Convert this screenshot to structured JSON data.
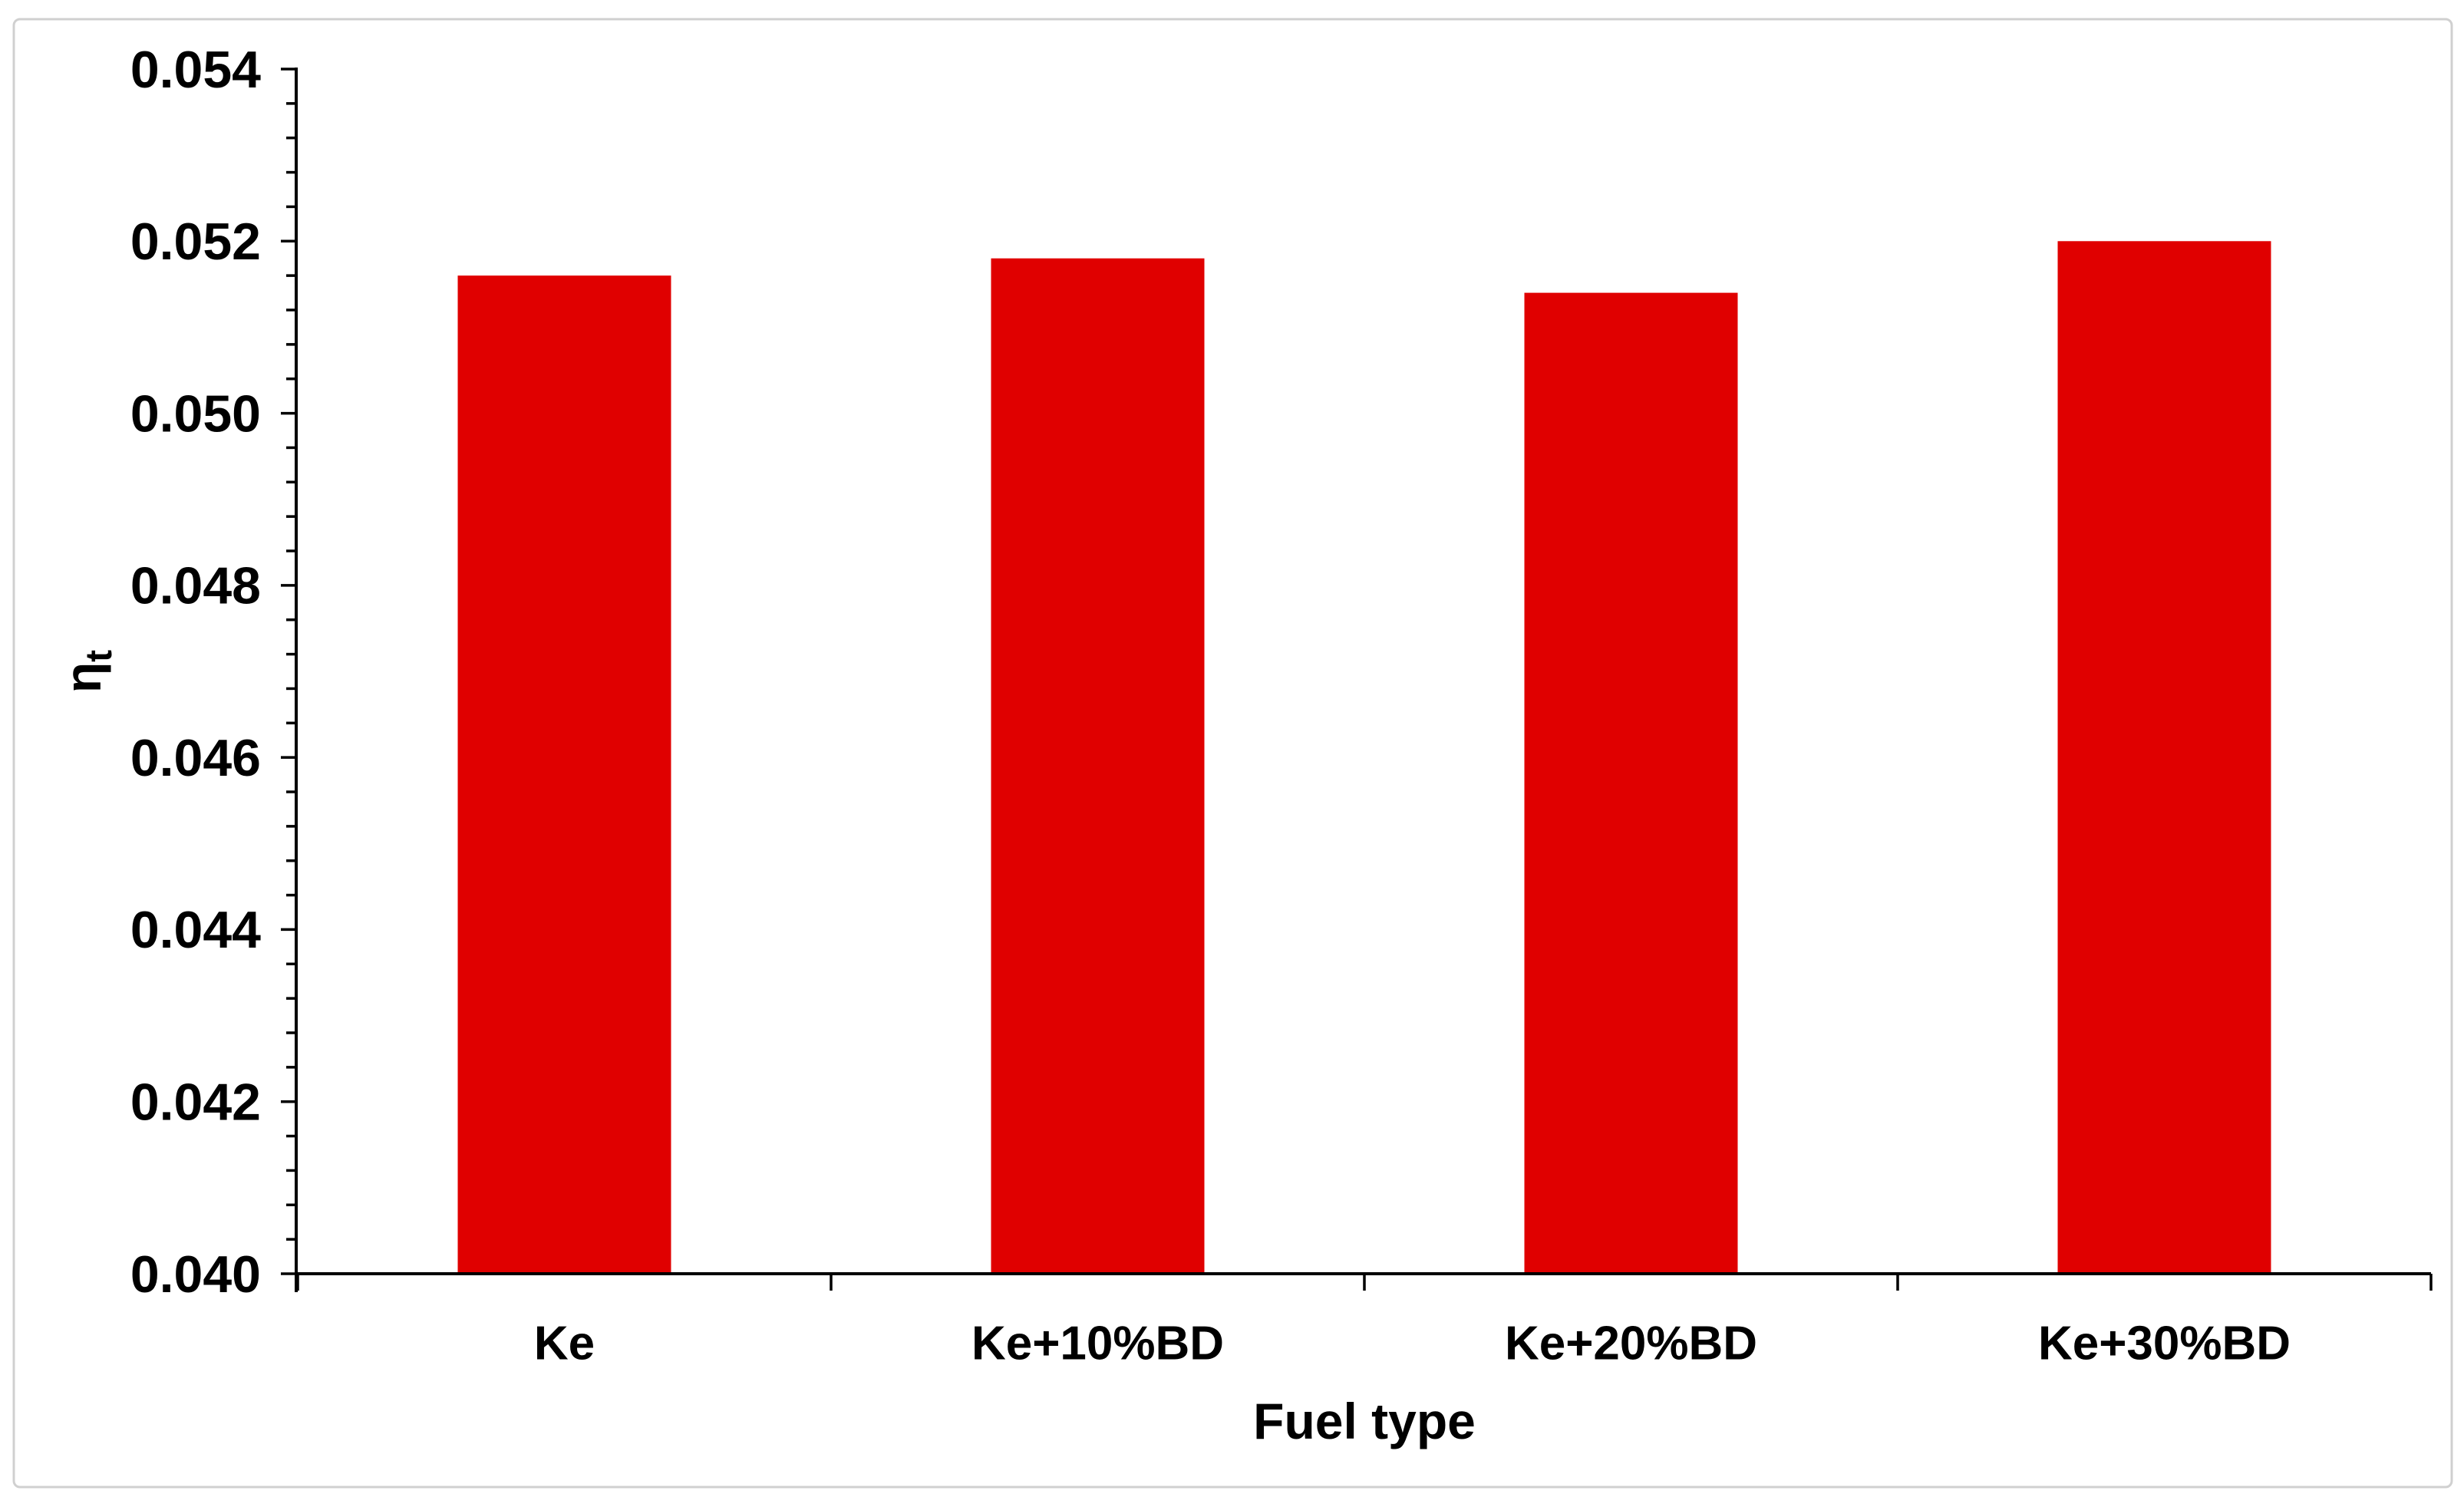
{
  "chart_data": {
    "type": "bar",
    "xlabel": "Fuel type",
    "ylabel": "ηt",
    "ylabel_base": "η",
    "ylabel_sub": "t",
    "categories": [
      "Ke",
      "Ke+10%BD",
      "Ke+20%BD",
      "Ke+30%BD"
    ],
    "values": [
      0.0516,
      0.0518,
      0.0514,
      0.052
    ],
    "ylim": [
      0.04,
      0.054
    ],
    "y_major_step": 0.002,
    "y_minor_step": 0.0004,
    "y_tick_labels": [
      "0.040",
      "0.042",
      "0.044",
      "0.046",
      "0.048",
      "0.050",
      "0.052",
      "0.054"
    ],
    "grid": "off",
    "legend": "none",
    "bar_fraction": 0.4,
    "colors": {
      "bar": "#e00000",
      "axis": "#000000",
      "text": "#000000",
      "figure_border": "#d0d0d0",
      "background": "#ffffff"
    }
  }
}
